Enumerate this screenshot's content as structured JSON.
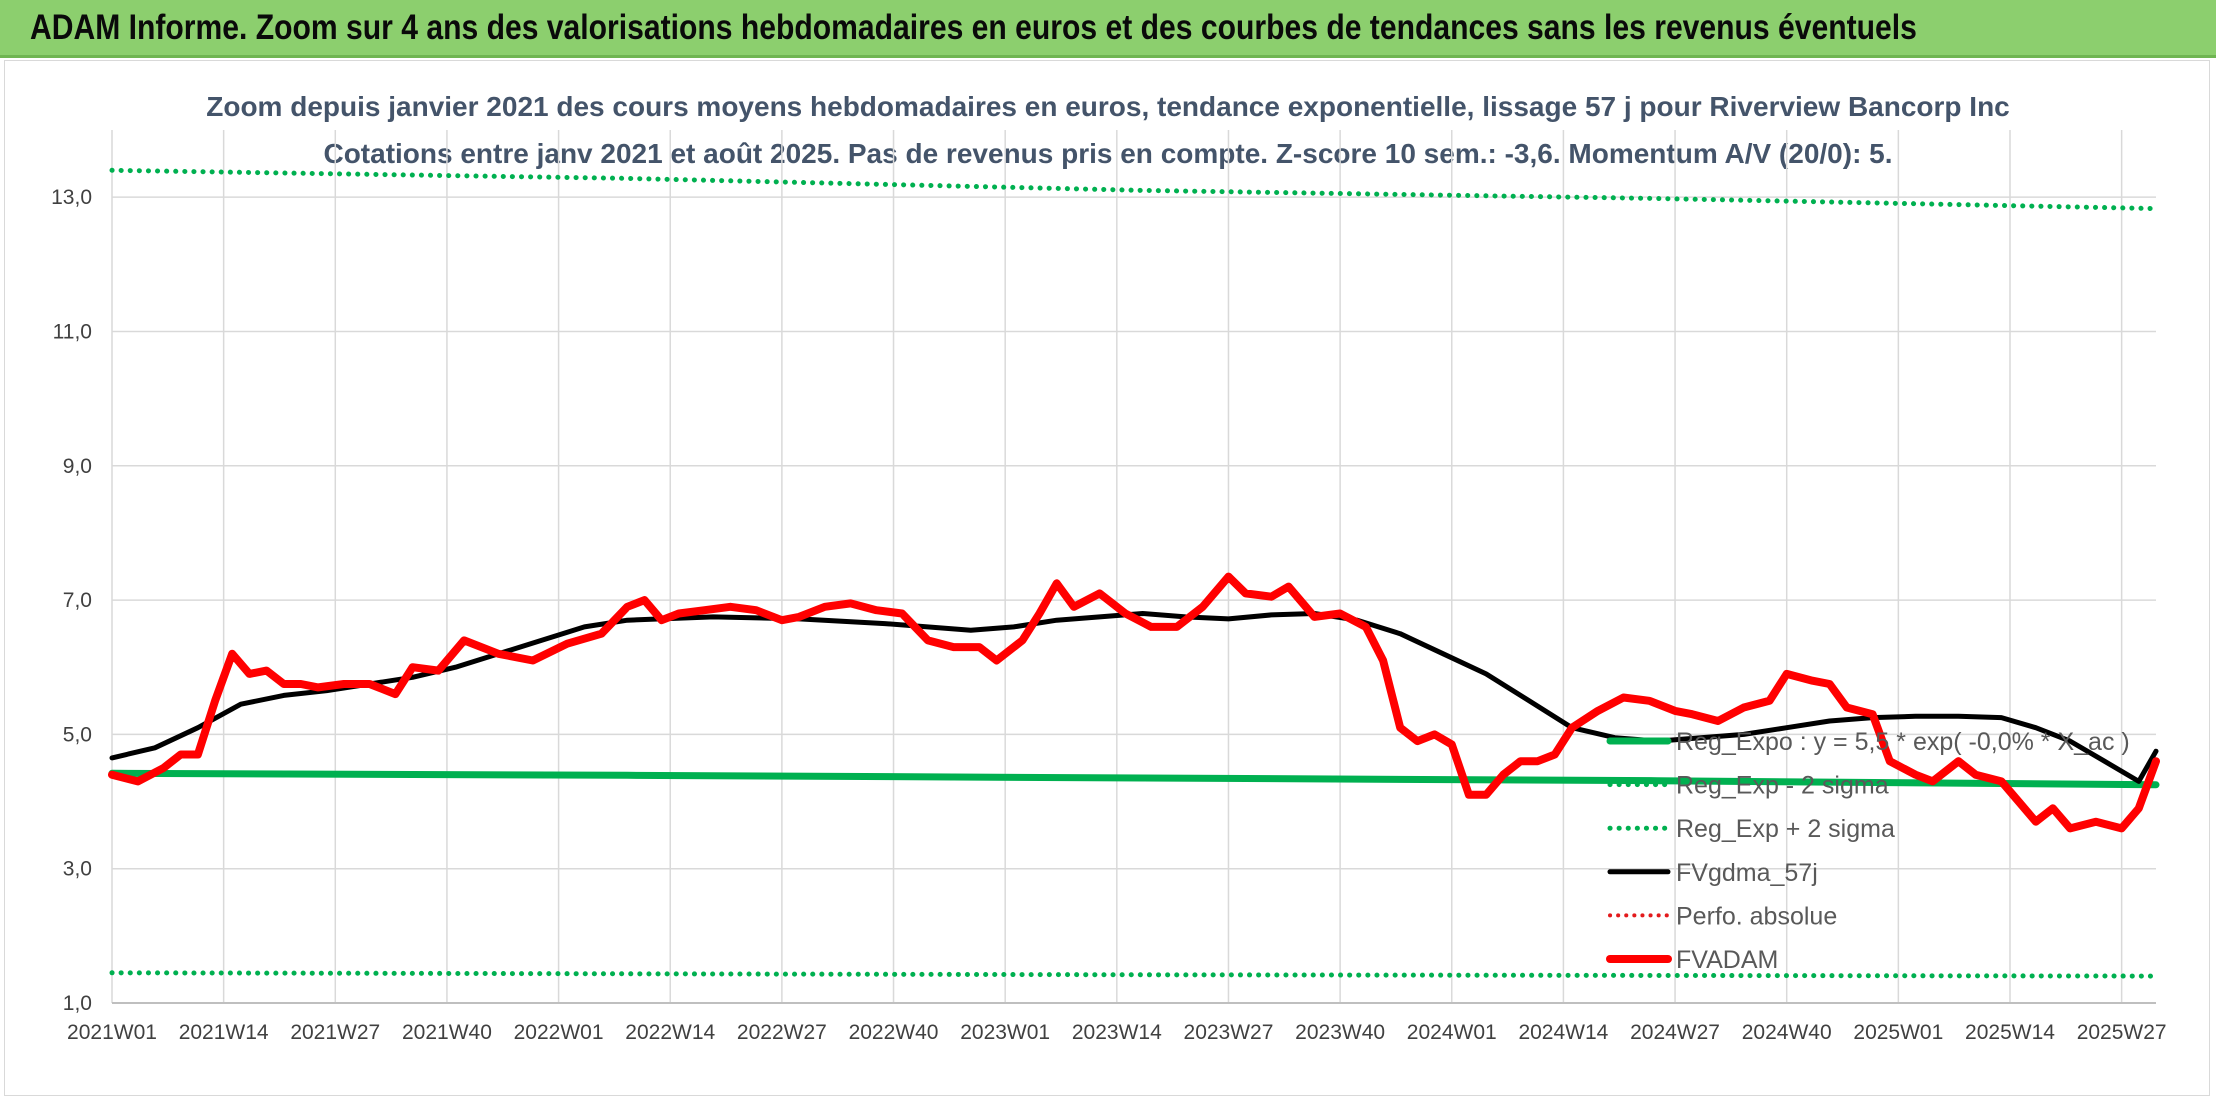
{
  "banner": {
    "title": "ADAM Informe. Zoom sur 4 ans des valorisations hebdomadaires en euros et des courbes de tendances sans les revenus éventuels"
  },
  "chart_data": {
    "type": "line",
    "title": "Zoom depuis janvier 2021 des cours moyens hebdomadaires en euros, tendance exponentielle, lissage 57 j pour Riverview Bancorp Inc",
    "subtitle": "Cotations entre janv 2021 et août 2025. Pas de revenus pris en compte. Z-score 10 sem.: -3,6. Momentum A/V (20/0): 5.",
    "ylim": [
      1,
      14
    ],
    "y_ticks": [
      "1,0",
      "3,0",
      "5,0",
      "7,0",
      "9,0",
      "11,0",
      "13,0"
    ],
    "y_tick_values": [
      1,
      3,
      5,
      7,
      9,
      11,
      13
    ],
    "x_ticks": [
      "2021W01",
      "2021W14",
      "2021W27",
      "2021W40",
      "2022W01",
      "2022W14",
      "2022W27",
      "2022W40",
      "2023W01",
      "2023W14",
      "2023W27",
      "2023W40",
      "2024W01",
      "2024W14",
      "2024W27",
      "2024W40",
      "2025W01",
      "2025W14",
      "2025W27"
    ],
    "x_tick_index": [
      0,
      13,
      26,
      39,
      52,
      65,
      78,
      91,
      104,
      117,
      130,
      143,
      156,
      169,
      182,
      195,
      208,
      221,
      234
    ],
    "x_count": 239,
    "grid": true,
    "legend_position": "right",
    "colors": {
      "reg_expo": "#00b050",
      "fvgdma": "#000000",
      "perfo": "#e31a1c",
      "fvadam": "#ff0000"
    },
    "series": [
      {
        "name": "Reg_Expo : y = 5,5 * exp( -0,0% * X_ac )",
        "style": "solid",
        "points": [
          [
            0,
            4.42
          ],
          [
            60,
            4.39
          ],
          [
            120,
            4.35
          ],
          [
            180,
            4.31
          ],
          [
            238,
            4.25
          ]
        ]
      },
      {
        "name": "Reg_Exp - 2 sigma",
        "style": "dotted",
        "points": [
          [
            0,
            1.45
          ],
          [
            120,
            1.42
          ],
          [
            238,
            1.4
          ]
        ]
      },
      {
        "name": "Reg_Exp + 2 sigma",
        "style": "dotted",
        "points": [
          [
            0,
            13.4
          ],
          [
            60,
            13.28
          ],
          [
            120,
            13.1
          ],
          [
            180,
            12.98
          ],
          [
            238,
            12.83
          ]
        ]
      },
      {
        "name": "FVgdma_57j",
        "style": "solid",
        "points": [
          [
            0,
            4.65
          ],
          [
            5,
            4.8
          ],
          [
            10,
            5.1
          ],
          [
            15,
            5.45
          ],
          [
            20,
            5.58
          ],
          [
            25,
            5.65
          ],
          [
            30,
            5.75
          ],
          [
            35,
            5.85
          ],
          [
            40,
            6.0
          ],
          [
            45,
            6.2
          ],
          [
            50,
            6.4
          ],
          [
            55,
            6.6
          ],
          [
            60,
            6.7
          ],
          [
            70,
            6.75
          ],
          [
            80,
            6.72
          ],
          [
            90,
            6.65
          ],
          [
            100,
            6.55
          ],
          [
            105,
            6.6
          ],
          [
            110,
            6.7
          ],
          [
            115,
            6.75
          ],
          [
            120,
            6.8
          ],
          [
            125,
            6.75
          ],
          [
            130,
            6.72
          ],
          [
            135,
            6.78
          ],
          [
            140,
            6.8
          ],
          [
            145,
            6.7
          ],
          [
            150,
            6.5
          ],
          [
            155,
            6.2
          ],
          [
            160,
            5.9
          ],
          [
            165,
            5.5
          ],
          [
            170,
            5.1
          ],
          [
            175,
            4.95
          ],
          [
            180,
            4.9
          ],
          [
            185,
            4.95
          ],
          [
            190,
            5.0
          ],
          [
            195,
            5.1
          ],
          [
            200,
            5.2
          ],
          [
            205,
            5.25
          ],
          [
            210,
            5.27
          ],
          [
            215,
            5.27
          ],
          [
            220,
            5.25
          ],
          [
            224,
            5.1
          ],
          [
            228,
            4.9
          ],
          [
            232,
            4.6
          ],
          [
            236,
            4.3
          ],
          [
            238,
            4.75
          ]
        ]
      },
      {
        "name": "Perfo. absolue",
        "style": "dotted",
        "points": []
      },
      {
        "name": "FVADAM",
        "style": "solid",
        "points": [
          [
            0,
            4.4
          ],
          [
            3,
            4.3
          ],
          [
            6,
            4.5
          ],
          [
            8,
            4.7
          ],
          [
            10,
            4.7
          ],
          [
            12,
            5.5
          ],
          [
            14,
            6.2
          ],
          [
            16,
            5.9
          ],
          [
            18,
            5.95
          ],
          [
            20,
            5.75
          ],
          [
            22,
            5.75
          ],
          [
            24,
            5.7
          ],
          [
            27,
            5.75
          ],
          [
            30,
            5.75
          ],
          [
            33,
            5.6
          ],
          [
            35,
            6.0
          ],
          [
            38,
            5.95
          ],
          [
            41,
            6.4
          ],
          [
            45,
            6.2
          ],
          [
            49,
            6.1
          ],
          [
            53,
            6.35
          ],
          [
            57,
            6.5
          ],
          [
            60,
            6.9
          ],
          [
            62,
            7.0
          ],
          [
            64,
            6.7
          ],
          [
            66,
            6.8
          ],
          [
            69,
            6.85
          ],
          [
            72,
            6.9
          ],
          [
            75,
            6.85
          ],
          [
            78,
            6.7
          ],
          [
            80,
            6.75
          ],
          [
            83,
            6.9
          ],
          [
            86,
            6.95
          ],
          [
            89,
            6.85
          ],
          [
            92,
            6.8
          ],
          [
            95,
            6.4
          ],
          [
            98,
            6.3
          ],
          [
            101,
            6.3
          ],
          [
            103,
            6.1
          ],
          [
            106,
            6.4
          ],
          [
            108,
            6.8
          ],
          [
            110,
            7.25
          ],
          [
            112,
            6.9
          ],
          [
            115,
            7.1
          ],
          [
            118,
            6.8
          ],
          [
            121,
            6.6
          ],
          [
            124,
            6.6
          ],
          [
            127,
            6.9
          ],
          [
            130,
            7.35
          ],
          [
            132,
            7.1
          ],
          [
            135,
            7.05
          ],
          [
            137,
            7.2
          ],
          [
            140,
            6.75
          ],
          [
            143,
            6.8
          ],
          [
            146,
            6.6
          ],
          [
            148,
            6.1
          ],
          [
            150,
            5.1
          ],
          [
            152,
            4.9
          ],
          [
            154,
            5.0
          ],
          [
            156,
            4.85
          ],
          [
            158,
            4.1
          ],
          [
            160,
            4.1
          ],
          [
            162,
            4.4
          ],
          [
            164,
            4.6
          ],
          [
            166,
            4.6
          ],
          [
            168,
            4.7
          ],
          [
            170,
            5.1
          ],
          [
            173,
            5.35
          ],
          [
            176,
            5.55
          ],
          [
            179,
            5.5
          ],
          [
            182,
            5.35
          ],
          [
            184,
            5.3
          ],
          [
            187,
            5.2
          ],
          [
            190,
            5.4
          ],
          [
            193,
            5.5
          ],
          [
            195,
            5.9
          ],
          [
            198,
            5.8
          ],
          [
            200,
            5.75
          ],
          [
            202,
            5.4
          ],
          [
            205,
            5.3
          ],
          [
            207,
            4.6
          ],
          [
            210,
            4.4
          ],
          [
            212,
            4.3
          ],
          [
            215,
            4.6
          ],
          [
            217,
            4.4
          ],
          [
            220,
            4.3
          ],
          [
            222,
            4.0
          ],
          [
            224,
            3.7
          ],
          [
            226,
            3.9
          ],
          [
            228,
            3.6
          ],
          [
            231,
            3.7
          ],
          [
            234,
            3.6
          ],
          [
            236,
            3.9
          ],
          [
            238,
            4.6
          ]
        ]
      }
    ]
  }
}
